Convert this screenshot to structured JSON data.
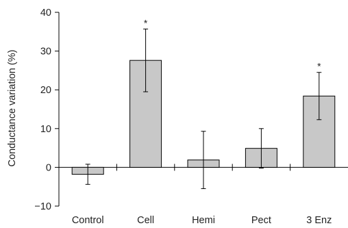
{
  "chart_data": {
    "type": "bar",
    "categories": [
      "Control",
      "Cell",
      "Hemi",
      "Pect",
      "3 Enz"
    ],
    "values": [
      -1.8,
      27.6,
      1.9,
      4.9,
      18.4
    ],
    "errors": [
      2.6,
      8.1,
      7.4,
      5.1,
      6.1
    ],
    "significance": [
      "",
      "*",
      "",
      "",
      "*"
    ],
    "title": "",
    "xlabel": "",
    "ylabel": "Conductance variation (%)",
    "ylim": [
      -10,
      40
    ],
    "yticks": [
      -10,
      0,
      10,
      20,
      30,
      40
    ],
    "grid": false,
    "bar_color": "#c8c8c8",
    "bar_edge_color": "#000000"
  }
}
